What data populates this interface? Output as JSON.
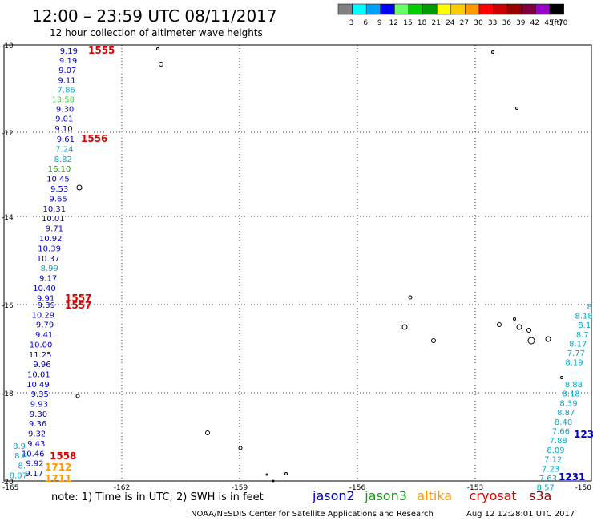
{
  "title": "12:00 – 23:59 UTC 08/11/2017",
  "subtitle": "12 hour collection of altimeter wave heights",
  "legend": {
    "unit": "(ft)",
    "items": [
      {
        "label": "3",
        "color": "#808080"
      },
      {
        "label": "6",
        "color": "#00ffff"
      },
      {
        "label": "9",
        "color": "#00a0ff"
      },
      {
        "label": "12",
        "color": "#0000ff"
      },
      {
        "label": "15",
        "color": "#66ff66"
      },
      {
        "label": "18",
        "color": "#00cc00"
      },
      {
        "label": "21",
        "color": "#009900"
      },
      {
        "label": "24",
        "color": "#ffff00"
      },
      {
        "label": "27",
        "color": "#ffcc00"
      },
      {
        "label": "30",
        "color": "#ff9900"
      },
      {
        "label": "33",
        "color": "#ff0000"
      },
      {
        "label": "36",
        "color": "#cc0000"
      },
      {
        "label": "39",
        "color": "#990000"
      },
      {
        "label": "42",
        "color": "#800040"
      },
      {
        "label": "45",
        "color": "#9900cc"
      },
      {
        "label": "70",
        "color": "#000000"
      }
    ]
  },
  "axes": {
    "lon_labels": [
      "-165",
      "-162",
      "-159",
      "-156",
      "-153",
      "-150"
    ],
    "lat_labels": [
      "-10",
      "-12",
      "-14",
      "-16",
      "-18",
      "-20"
    ]
  },
  "tracks": [
    {
      "name": "track-1555",
      "labels": [
        {
          "v": "9.19",
          "c": "#0000cc"
        },
        {
          "v": "9.19",
          "c": "#0000cc"
        },
        {
          "v": "9.07",
          "c": "#0000cc"
        },
        {
          "v": "9.11",
          "c": "#0000cc"
        },
        {
          "v": "7.86",
          "c": "#00aacc"
        },
        {
          "v": "13.58",
          "c": "#33dd33"
        },
        {
          "v": "9.30",
          "c": "#0000cc"
        },
        {
          "v": "9.01",
          "c": "#0000cc"
        },
        {
          "v": "9.10",
          "c": "#0000cc"
        }
      ]
    },
    {
      "name": "track-1556",
      "labels": [
        {
          "v": "9.61",
          "c": "#0000cc"
        },
        {
          "v": "7.24",
          "c": "#00aacc"
        },
        {
          "v": "8.82",
          "c": "#00aacc"
        },
        {
          "v": "16.10",
          "c": "#00aa00"
        },
        {
          "v": "10.45",
          "c": "#0000cc"
        },
        {
          "v": "9.53",
          "c": "#0000cc"
        },
        {
          "v": "9.65",
          "c": "#0000cc"
        },
        {
          "v": "10.31",
          "c": "#0000cc"
        },
        {
          "v": "10.01",
          "c": "#0000cc"
        },
        {
          "v": "9.71",
          "c": "#0000cc"
        },
        {
          "v": "10.92",
          "c": "#0000cc"
        },
        {
          "v": "10.39",
          "c": "#0000cc"
        },
        {
          "v": "10.37",
          "c": "#0000cc"
        },
        {
          "v": "8.99",
          "c": "#00aacc"
        },
        {
          "v": "9.17",
          "c": "#0000cc"
        },
        {
          "v": "10.40",
          "c": "#0000cc"
        },
        {
          "v": "9.91",
          "c": "#0000cc"
        }
      ]
    },
    {
      "name": "track-1557",
      "labels": [
        {
          "v": "9.39",
          "c": "#0000cc"
        },
        {
          "v": "10.29",
          "c": "#0000cc"
        },
        {
          "v": "9.79",
          "c": "#0000cc"
        },
        {
          "v": "9.41",
          "c": "#0000cc"
        },
        {
          "v": "10.00",
          "c": "#0000cc"
        },
        {
          "v": "11.25",
          "c": "#0000cc"
        },
        {
          "v": "9.96",
          "c": "#0000cc"
        },
        {
          "v": "10.01",
          "c": "#0000cc"
        },
        {
          "v": "10.49",
          "c": "#0000cc"
        },
        {
          "v": "9.35",
          "c": "#0000cc"
        },
        {
          "v": "9.93",
          "c": "#0000cc"
        },
        {
          "v": "9.30",
          "c": "#0000cc"
        },
        {
          "v": "9.36",
          "c": "#0000cc"
        },
        {
          "v": "9.32",
          "c": "#0000cc"
        },
        {
          "v": "9.43",
          "c": "#0000cc"
        },
        {
          "v": "10.46",
          "c": "#0000cc"
        },
        {
          "v": "9.92",
          "c": "#0000cc"
        },
        {
          "v": "9.17",
          "c": "#0000cc"
        }
      ]
    },
    {
      "name": "track-1231",
      "labels": [
        {
          "v": "8.",
          "c": "#00aacc"
        },
        {
          "v": "8.18",
          "c": "#00aacc"
        },
        {
          "v": "8.1",
          "c": "#00aacc"
        },
        {
          "v": "8.7",
          "c": "#00aacc"
        },
        {
          "v": "8.17",
          "c": "#00aacc"
        },
        {
          "v": "7.77",
          "c": "#00aacc"
        },
        {
          "v": "8.19",
          "c": "#00aacc"
        },
        {
          "v": "8.88",
          "c": "#00aacc"
        },
        {
          "v": "8.18",
          "c": "#00aacc"
        },
        {
          "v": "8.39",
          "c": "#00aacc"
        },
        {
          "v": "8.87",
          "c": "#00aacc"
        },
        {
          "v": "8.40",
          "c": "#00aacc"
        },
        {
          "v": "7.66",
          "c": "#00aacc"
        },
        {
          "v": "7.88",
          "c": "#00aacc"
        },
        {
          "v": "8.09",
          "c": "#00aacc"
        },
        {
          "v": "7.12",
          "c": "#00aacc"
        },
        {
          "v": "7.23",
          "c": "#00aacc"
        },
        {
          "v": "7.63",
          "c": "#00aacc"
        },
        {
          "v": "8.57",
          "c": "#00aacc"
        }
      ]
    },
    {
      "name": "track-left-edge",
      "labels": [
        {
          "v": "8.9",
          "c": "#00aacc"
        },
        {
          "v": "8.0",
          "c": "#00aacc"
        },
        {
          "v": "8.",
          "c": "#00aacc"
        },
        {
          "v": "8.07",
          "c": "#00aacc"
        }
      ]
    }
  ],
  "pass_labels": [
    {
      "text": "1555",
      "color": "#dd0000"
    },
    {
      "text": "1556",
      "color": "#dd0000"
    },
    {
      "text": "1557",
      "color": "#dd0000"
    },
    {
      "text": "1557",
      "color": "#dd0000"
    },
    {
      "text": "1558",
      "color": "#dd0000"
    },
    {
      "text": "1712",
      "color": "#ff9900"
    },
    {
      "text": "1711",
      "color": "#ff9900"
    },
    {
      "text": "123",
      "color": "#0000cc"
    },
    {
      "text": "1231",
      "color": "#0000cc"
    }
  ],
  "footer": {
    "note": "note: 1) Time is in UTC; 2) SWH is in feet",
    "satellites": [
      {
        "name": "jason2",
        "color": "#0000cc"
      },
      {
        "name": "jason3",
        "color": "#00aa00"
      },
      {
        "name": "altika",
        "color": "#ff9900"
      },
      {
        "name": "cryosat",
        "color": "#dd0000"
      },
      {
        "name": "s3a",
        "color": "#990000"
      }
    ],
    "credit": "NOAA/NESDIS Center for Satellite Applications and Research",
    "timestamp": "Aug 12 12:28:01 UTC 2017"
  }
}
